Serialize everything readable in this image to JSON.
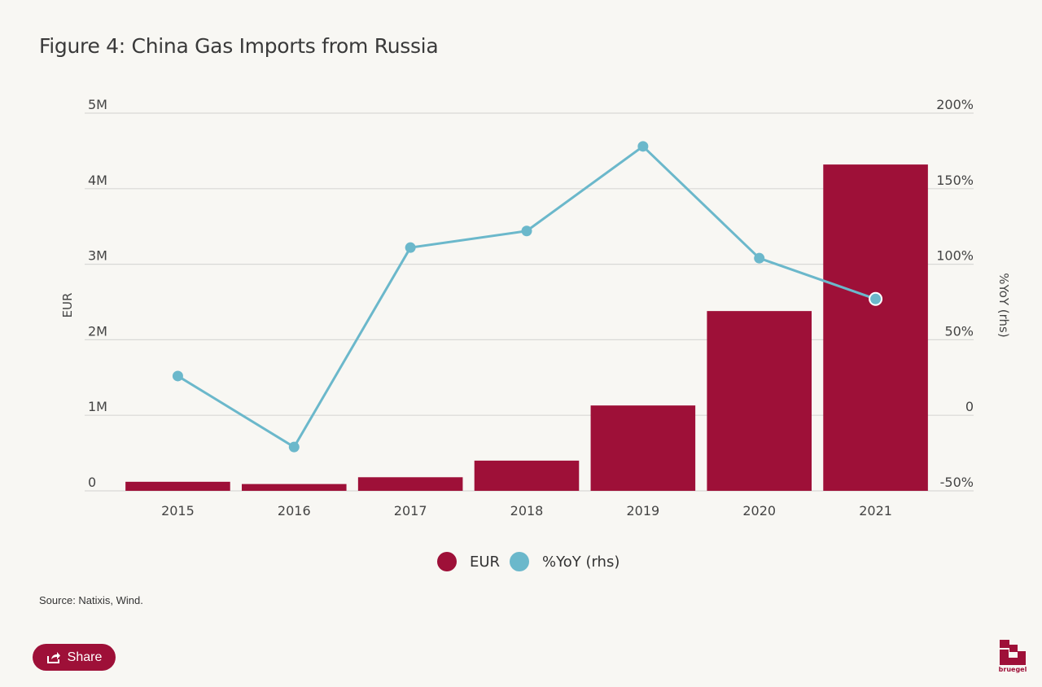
{
  "title": "Figure 4: China Gas Imports from Russia",
  "source": "Source: Natixis, Wind.",
  "share_label": "Share",
  "logo_text": "bruegel",
  "colors": {
    "bar": "#9e1038",
    "line": "#6bb8cb",
    "grid": "#d9d9d6",
    "share": "#9e1038"
  },
  "chart_data": {
    "type": "bar",
    "categories": [
      "2015",
      "2016",
      "2017",
      "2018",
      "2019",
      "2020",
      "2021"
    ],
    "ylabel": "EUR",
    "y2label": "%YoY (rhs)",
    "ylim": [
      0,
      5000000
    ],
    "y2lim": [
      -50,
      200
    ],
    "yticks": [
      {
        "value": 0,
        "label": "0"
      },
      {
        "value": 1000000,
        "label": "1M"
      },
      {
        "value": 2000000,
        "label": "2M"
      },
      {
        "value": 3000000,
        "label": "3M"
      },
      {
        "value": 4000000,
        "label": "4M"
      },
      {
        "value": 5000000,
        "label": "5M"
      }
    ],
    "y2ticks": [
      {
        "value": -50,
        "label": "-50%"
      },
      {
        "value": 0,
        "label": "0"
      },
      {
        "value": 50,
        "label": "50%"
      },
      {
        "value": 100,
        "label": "100%"
      },
      {
        "value": 150,
        "label": "150%"
      },
      {
        "value": 200,
        "label": "200%"
      }
    ],
    "grid": true,
    "legend_position": "bottom",
    "series": [
      {
        "name": "EUR",
        "type": "bar",
        "axis": "left",
        "values": [
          120000,
          90000,
          180000,
          400000,
          1130000,
          2380000,
          4320000
        ]
      },
      {
        "name": "%YoY (rhs)",
        "type": "line",
        "axis": "right",
        "values": [
          26,
          -21,
          111,
          122,
          178,
          104,
          77
        ]
      }
    ]
  }
}
